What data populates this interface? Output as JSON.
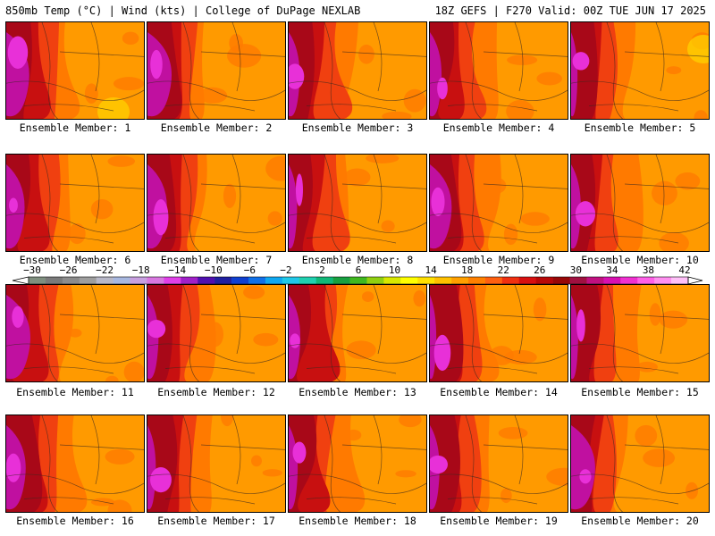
{
  "header": {
    "left_title": "850mb Temp (°C) | Wind (kts) | College of DuPage NEXLAB",
    "right_title": "18Z GEFS | F270 Valid: 00Z TUE JUN 17 2025"
  },
  "members": [
    {
      "label": "Ensemble Member: 1"
    },
    {
      "label": "Ensemble Member: 2"
    },
    {
      "label": "Ensemble Member: 3"
    },
    {
      "label": "Ensemble Member: 4"
    },
    {
      "label": "Ensemble Member: 5"
    },
    {
      "label": "Ensemble Member: 6"
    },
    {
      "label": "Ensemble Member: 7"
    },
    {
      "label": "Ensemble Member: 8"
    },
    {
      "label": "Ensemble Member: 9"
    },
    {
      "label": "Ensemble Member: 10"
    },
    {
      "label": "Ensemble Member: 11"
    },
    {
      "label": "Ensemble Member: 12"
    },
    {
      "label": "Ensemble Member: 13"
    },
    {
      "label": "Ensemble Member: 14"
    },
    {
      "label": "Ensemble Member: 15"
    },
    {
      "label": "Ensemble Member: 16"
    },
    {
      "label": "Ensemble Member: 17"
    },
    {
      "label": "Ensemble Member: 18"
    },
    {
      "label": "Ensemble Member: 19"
    },
    {
      "label": "Ensemble Member: 20"
    }
  ],
  "colorbar": {
    "tick_labels": [
      "−30",
      "−26",
      "−22",
      "−18",
      "−14",
      "−10",
      "−6",
      "−2",
      "2",
      "6",
      "10",
      "14",
      "18",
      "22",
      "26",
      "30",
      "34",
      "38",
      "42"
    ],
    "colors": [
      "#7f8f7f",
      "#7a7a7a",
      "#8c8c8c",
      "#9e9e9e",
      "#b8b8c8",
      "#a8b8e0",
      "#c8a0e0",
      "#d878e0",
      "#e040e8",
      "#a020c8",
      "#5010b0",
      "#2020a0",
      "#1040d0",
      "#1070e8",
      "#10a8f0",
      "#20c8e8",
      "#20d0b0",
      "#10b878",
      "#18a040",
      "#40b820",
      "#90d010",
      "#d8e800",
      "#ffff00",
      "#ffe000",
      "#ffc000",
      "#ffa000",
      "#ff8000",
      "#ff6010",
      "#f03010",
      "#d81010",
      "#b80808",
      "#980808",
      "#a01040",
      "#c01080",
      "#d810b0",
      "#f030d0",
      "#ff60e8",
      "#ff90f0",
      "#ffc0f8"
    ]
  },
  "map_colors": {
    "cool": "#ff9a00",
    "mid": "#ff7a00",
    "warm": "#f04010",
    "hot": "#c81010",
    "hotter": "#a80818",
    "magenta": "#c010a0",
    "pink": "#e830d8",
    "yellow": "#ffd000"
  }
}
